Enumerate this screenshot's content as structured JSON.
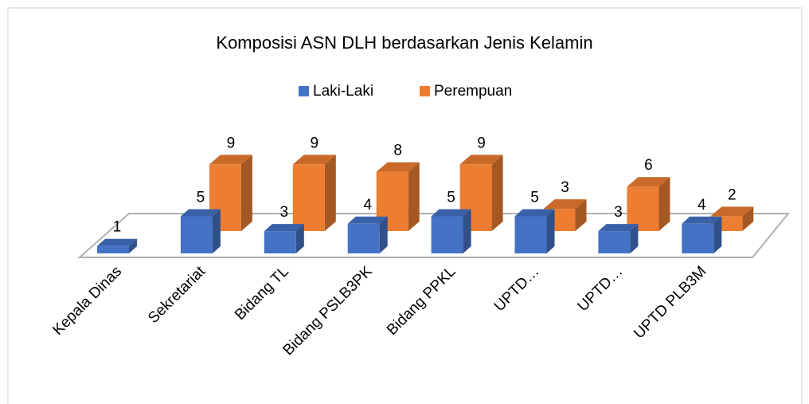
{
  "chart_data": {
    "type": "bar3d",
    "title": "Komposisi ASN DLH berdasarkan Jenis Kelamin",
    "categories": [
      "Kepala Dinas",
      "Sekretariat",
      "Bidang TL",
      "Bidang PSLB3PK",
      "Bidang PPKL",
      "UPTD…",
      "UPTD…",
      "UPTD PLB3M"
    ],
    "series": [
      {
        "name": "Laki-Laki",
        "color": "#4472c4",
        "values": [
          1,
          5,
          3,
          4,
          5,
          5,
          3,
          4
        ]
      },
      {
        "name": "Perempuan",
        "color": "#ed7d31",
        "values": [
          null,
          9,
          9,
          8,
          9,
          3,
          6,
          2
        ]
      }
    ],
    "legend": "top"
  }
}
